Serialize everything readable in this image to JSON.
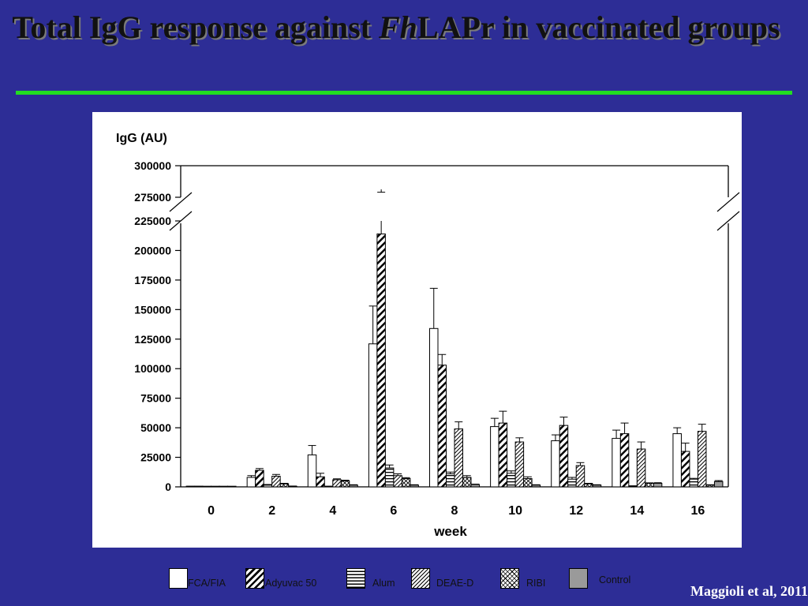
{
  "slide": {
    "title_part1": "Total IgG response against ",
    "title_italic": "Fh",
    "title_part2": "LAPr in vaccinated groups",
    "citation": "Maggioli et al, 2011"
  },
  "colors": {
    "background": "#2d2d96",
    "title_rule": "#22dd22",
    "panel": "#ffffff",
    "control_fill": "#9a9a9a"
  },
  "chart_data": {
    "type": "bar",
    "ylabel": "IgG (AU)",
    "xlabel": "week",
    "categories": [
      "0",
      "2",
      "4",
      "6",
      "8",
      "10",
      "12",
      "14",
      "16"
    ],
    "ylim": [
      0,
      300000
    ],
    "axis_break": [
      225000,
      275000
    ],
    "y_ticks": [
      0,
      25000,
      50000,
      75000,
      100000,
      125000,
      150000,
      175000,
      200000,
      225000,
      275000,
      300000
    ],
    "y_tick_labels": [
      "0",
      "25000",
      "50000",
      "75000",
      "100000",
      "125000",
      "150000",
      "175000",
      "200000",
      "225000",
      "275000",
      "300000"
    ],
    "grid": false,
    "legend_position": "bottom",
    "series": [
      {
        "name": "FCA/FIA",
        "pattern": "open",
        "values": [
          300,
          8000,
          27000,
          121000,
          134000,
          51000,
          39000,
          41000,
          45000
        ],
        "errors": [
          200,
          1500,
          8000,
          32000,
          34000,
          7000,
          5000,
          7000,
          5000
        ]
      },
      {
        "name": "Adyuvac 50",
        "pattern": "wide-diagonal",
        "values": [
          300,
          14000,
          8500,
          214000,
          103000,
          54000,
          52000,
          45000,
          30000
        ],
        "errors": [
          200,
          1500,
          3000,
          65000,
          9000,
          10000,
          7000,
          9000,
          7000
        ]
      },
      {
        "name": "Alum",
        "pattern": "horizontal",
        "values": [
          200,
          1500,
          300,
          16000,
          11000,
          11500,
          6500,
          600,
          6500
        ],
        "errors": [
          100,
          500,
          200,
          2500,
          1500,
          2000,
          1500,
          300,
          700
        ]
      },
      {
        "name": "DEAE-D",
        "pattern": "dense-diagonal",
        "values": [
          200,
          9000,
          6000,
          9500,
          49000,
          38000,
          18000,
          32000,
          47000
        ],
        "errors": [
          100,
          1500,
          800,
          1500,
          6000,
          3500,
          2500,
          6000,
          6000
        ]
      },
      {
        "name": "RIBI",
        "pattern": "crosshatch",
        "values": [
          150,
          2500,
          5000,
          7000,
          8000,
          7000,
          2500,
          3000,
          1500
        ],
        "errors": [
          100,
          500,
          600,
          800,
          1500,
          1500,
          500,
          400,
          300
        ]
      },
      {
        "name": "Control",
        "pattern": "gray",
        "values": [
          100,
          500,
          1500,
          1500,
          2000,
          1500,
          1500,
          3000,
          4500
        ],
        "errors": [
          50,
          200,
          300,
          300,
          300,
          300,
          300,
          500,
          800
        ]
      }
    ]
  }
}
